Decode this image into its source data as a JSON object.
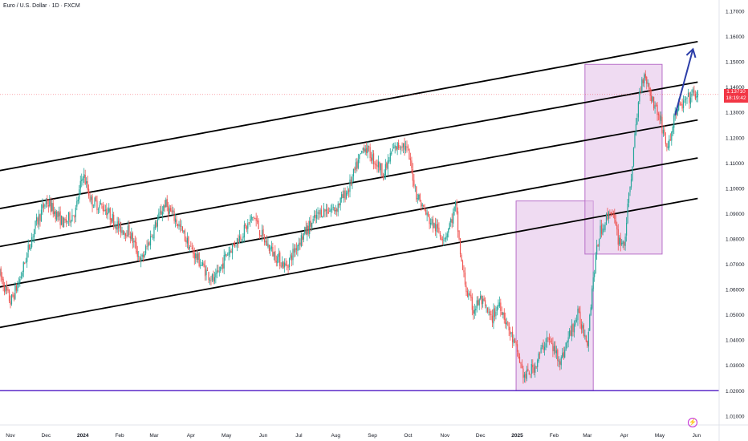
{
  "header": {
    "title": "Euro / U.S. Dollar · 1D · FXCM"
  },
  "price_tag": {
    "price": "1.13710",
    "countdown": "18:19:42",
    "color": "#f23645"
  },
  "colors": {
    "up_candle": "#26a69a",
    "down_candle": "#ef5350",
    "channel_lines": "#000000",
    "support_line": "#5b2bc8",
    "highlight_box": "#e1bee7",
    "arrow": "#2c3ea8",
    "logo": "#c026d3"
  },
  "logo": {
    "icon": "lightning-bolt-icon"
  },
  "chart_data": {
    "type": "candlestick",
    "title": "Euro / U.S. Dollar · 1D · FXCM",
    "xlabel": "",
    "ylabel": "",
    "y_axis_position": "right",
    "ylim": [
      1.005,
      1.172
    ],
    "y_ticks": [
      "1.17000",
      "1.16000",
      "1.15000",
      "1.14000",
      "1.13000",
      "1.12000",
      "1.11000",
      "1.10000",
      "1.09000",
      "1.08000",
      "1.07000",
      "1.06000",
      "1.05000",
      "1.04000",
      "1.03000",
      "1.02000",
      "1.01000"
    ],
    "x_ticks": [
      {
        "label": "Nov",
        "t": 0
      },
      {
        "label": "Dec",
        "t": 30
      },
      {
        "label": "2024",
        "t": 61
      },
      {
        "label": "Feb",
        "t": 92
      },
      {
        "label": "Mar",
        "t": 121
      },
      {
        "label": "Apr",
        "t": 152
      },
      {
        "label": "May",
        "t": 182
      },
      {
        "label": "Jun",
        "t": 213
      },
      {
        "label": "Jul",
        "t": 243
      },
      {
        "label": "Aug",
        "t": 274
      },
      {
        "label": "Sep",
        "t": 305
      },
      {
        "label": "Oct",
        "t": 335
      },
      {
        "label": "Nov",
        "t": 366
      },
      {
        "label": "Dec",
        "t": 396
      },
      {
        "label": "2025",
        "t": 427
      },
      {
        "label": "Feb",
        "t": 458
      },
      {
        "label": "Mar",
        "t": 486
      },
      {
        "label": "Apr",
        "t": 517
      },
      {
        "label": "May",
        "t": 547
      },
      {
        "label": "Jun",
        "t": 578
      }
    ],
    "t_range": [
      -9,
      601
    ],
    "last_price": 1.1371,
    "waypoints": [
      [
        -9,
        1.066
      ],
      [
        0,
        1.055
      ],
      [
        8,
        1.064
      ],
      [
        20,
        1.084
      ],
      [
        30,
        1.095
      ],
      [
        45,
        1.086
      ],
      [
        55,
        1.091
      ],
      [
        61,
        1.106
      ],
      [
        68,
        1.095
      ],
      [
        80,
        1.092
      ],
      [
        92,
        1.084
      ],
      [
        100,
        1.083
      ],
      [
        110,
        1.071
      ],
      [
        121,
        1.084
      ],
      [
        130,
        1.094
      ],
      [
        140,
        1.087
      ],
      [
        152,
        1.076
      ],
      [
        165,
        1.067
      ],
      [
        172,
        1.063
      ],
      [
        182,
        1.074
      ],
      [
        195,
        1.082
      ],
      [
        205,
        1.089
      ],
      [
        213,
        1.08
      ],
      [
        222,
        1.074
      ],
      [
        232,
        1.069
      ],
      [
        243,
        1.079
      ],
      [
        252,
        1.085
      ],
      [
        262,
        1.091
      ],
      [
        274,
        1.092
      ],
      [
        285,
        1.1
      ],
      [
        298,
        1.117
      ],
      [
        305,
        1.112
      ],
      [
        315,
        1.106
      ],
      [
        322,
        1.115
      ],
      [
        330,
        1.118
      ],
      [
        335,
        1.114
      ],
      [
        342,
        1.098
      ],
      [
        352,
        1.088
      ],
      [
        362,
        1.082
      ],
      [
        366,
        1.081
      ],
      [
        372,
        1.088
      ],
      [
        375,
        1.093
      ],
      [
        380,
        1.07
      ],
      [
        385,
        1.058
      ],
      [
        390,
        1.052
      ],
      [
        396,
        1.056
      ],
      [
        405,
        1.048
      ],
      [
        412,
        1.055
      ],
      [
        420,
        1.044
      ],
      [
        427,
        1.035
      ],
      [
        433,
        1.025
      ],
      [
        442,
        1.03
      ],
      [
        452,
        1.041
      ],
      [
        458,
        1.036
      ],
      [
        464,
        1.032
      ],
      [
        470,
        1.041
      ],
      [
        478,
        1.05
      ],
      [
        486,
        1.04
      ],
      [
        491,
        1.065
      ],
      [
        496,
        1.082
      ],
      [
        506,
        1.092
      ],
      [
        512,
        1.08
      ],
      [
        517,
        1.078
      ],
      [
        521,
        1.096
      ],
      [
        525,
        1.115
      ],
      [
        530,
        1.138
      ],
      [
        534,
        1.146
      ],
      [
        540,
        1.136
      ],
      [
        547,
        1.128
      ],
      [
        554,
        1.115
      ],
      [
        560,
        1.13
      ],
      [
        568,
        1.134
      ],
      [
        575,
        1.137
      ],
      [
        579,
        1.137
      ]
    ],
    "channel_lines": [
      {
        "points": [
          [
            -9,
            1.107
          ],
          [
            579,
            1.158
          ]
        ]
      },
      {
        "points": [
          [
            -9,
            1.092
          ],
          [
            579,
            1.142
          ]
        ]
      },
      {
        "points": [
          [
            -9,
            1.077
          ],
          [
            579,
            1.127
          ]
        ]
      },
      {
        "points": [
          [
            -9,
            1.061
          ],
          [
            579,
            1.112
          ]
        ]
      },
      {
        "points": [
          [
            -9,
            1.045
          ],
          [
            579,
            1.096
          ]
        ]
      }
    ],
    "horizontal_lines": [
      {
        "y": 1.02
      }
    ],
    "highlight_boxes": [
      {
        "t": [
          426,
          491
        ],
        "y": [
          1.02,
          1.095
        ]
      },
      {
        "t": [
          484,
          549
        ],
        "y": [
          1.074,
          1.149
        ]
      }
    ],
    "annotations": [
      {
        "type": "arrow",
        "from": [
          560,
          1.129
        ],
        "to": [
          575,
          1.155
        ]
      }
    ],
    "grid": false,
    "legend": "none"
  }
}
